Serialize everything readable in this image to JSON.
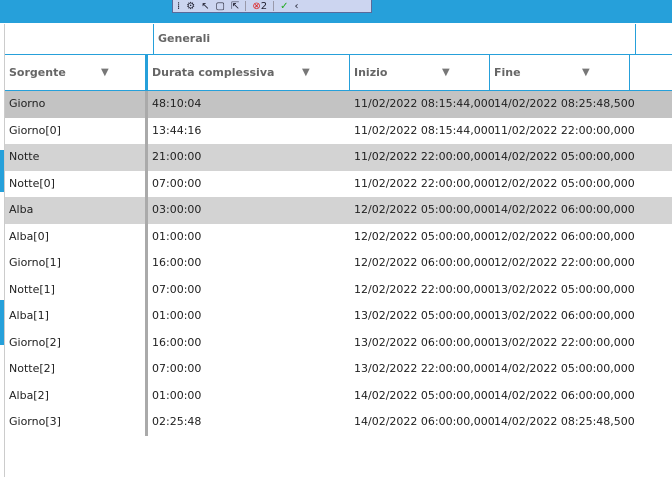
{
  "toolbar": {
    "issues_count": "2"
  },
  "grid": {
    "group_header": "Generali",
    "columns": [
      "Sorgente",
      "Durata complessiva",
      "Inizio",
      "Fine"
    ],
    "rows": [
      {
        "sorgente": "Giorno",
        "durata": "48:10:04",
        "inizio": "11/02/2022 08:15:44,000",
        "fine": "14/02/2022 08:25:48,500",
        "style": "sel"
      },
      {
        "sorgente": "Giorno[0]",
        "durata": "13:44:16",
        "inizio": "11/02/2022 08:15:44,000",
        "fine": "11/02/2022 22:00:00,000",
        "style": ""
      },
      {
        "sorgente": "Notte",
        "durata": "21:00:00",
        "inizio": "11/02/2022 22:00:00,000",
        "fine": "14/02/2022 05:00:00,000",
        "style": "alt"
      },
      {
        "sorgente": "Notte[0]",
        "durata": "07:00:00",
        "inizio": "11/02/2022 22:00:00,000",
        "fine": "12/02/2022 05:00:00,000",
        "style": ""
      },
      {
        "sorgente": "Alba",
        "durata": "03:00:00",
        "inizio": "12/02/2022 05:00:00,000",
        "fine": "14/02/2022 06:00:00,000",
        "style": "alt"
      },
      {
        "sorgente": "Alba[0]",
        "durata": "01:00:00",
        "inizio": "12/02/2022 05:00:00,000",
        "fine": "12/02/2022 06:00:00,000",
        "style": ""
      },
      {
        "sorgente": "Giorno[1]",
        "durata": "16:00:00",
        "inizio": "12/02/2022 06:00:00,000",
        "fine": "12/02/2022 22:00:00,000",
        "style": ""
      },
      {
        "sorgente": "Notte[1]",
        "durata": "07:00:00",
        "inizio": "12/02/2022 22:00:00,000",
        "fine": "13/02/2022 05:00:00,000",
        "style": ""
      },
      {
        "sorgente": "Alba[1]",
        "durata": "01:00:00",
        "inizio": "13/02/2022 05:00:00,000",
        "fine": "13/02/2022 06:00:00,000",
        "style": ""
      },
      {
        "sorgente": "Giorno[2]",
        "durata": "16:00:00",
        "inizio": "13/02/2022 06:00:00,000",
        "fine": "13/02/2022 22:00:00,000",
        "style": ""
      },
      {
        "sorgente": "Notte[2]",
        "durata": "07:00:00",
        "inizio": "13/02/2022 22:00:00,000",
        "fine": "14/02/2022 05:00:00,000",
        "style": ""
      },
      {
        "sorgente": "Alba[2]",
        "durata": "01:00:00",
        "inizio": "14/02/2022 05:00:00,000",
        "fine": "14/02/2022 06:00:00,000",
        "style": ""
      },
      {
        "sorgente": "Giorno[3]",
        "durata": "02:25:48",
        "inizio": "14/02/2022 06:00:00,000",
        "fine": "14/02/2022 08:25:48,500",
        "style": ""
      }
    ]
  }
}
